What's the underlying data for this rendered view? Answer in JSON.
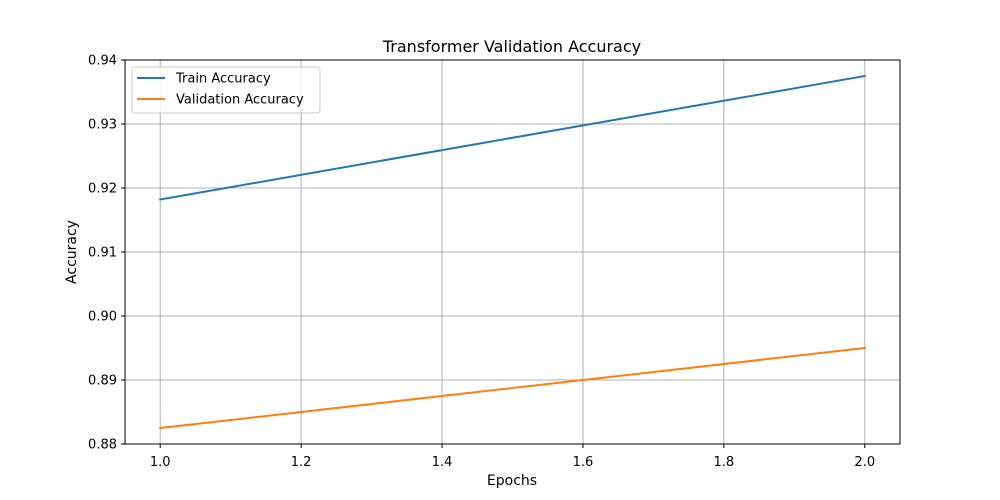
{
  "chart_data": {
    "type": "line",
    "title": "Transformer Validation Accuracy",
    "xlabel": "Epochs",
    "ylabel": "Accuracy",
    "xlim": [
      0.95,
      2.05
    ],
    "ylim": [
      0.88,
      0.94
    ],
    "xticks": [
      1.0,
      1.2,
      1.4,
      1.6,
      1.8,
      2.0
    ],
    "xtick_labels": [
      "1.0",
      "1.2",
      "1.4",
      "1.6",
      "1.8",
      "2.0"
    ],
    "yticks": [
      0.88,
      0.89,
      0.9,
      0.91,
      0.92,
      0.93,
      0.94
    ],
    "ytick_labels": [
      "0.88",
      "0.89",
      "0.90",
      "0.91",
      "0.92",
      "0.93",
      "0.94"
    ],
    "grid": true,
    "legend_position": "top-left",
    "x": [
      1.0,
      2.0
    ],
    "series": [
      {
        "name": "Train Accuracy",
        "values": [
          0.9182,
          0.9375
        ],
        "color": "#1f77b4"
      },
      {
        "name": "Validation Accuracy",
        "values": [
          0.8825,
          0.895
        ],
        "color": "#ff7f0e"
      }
    ]
  }
}
